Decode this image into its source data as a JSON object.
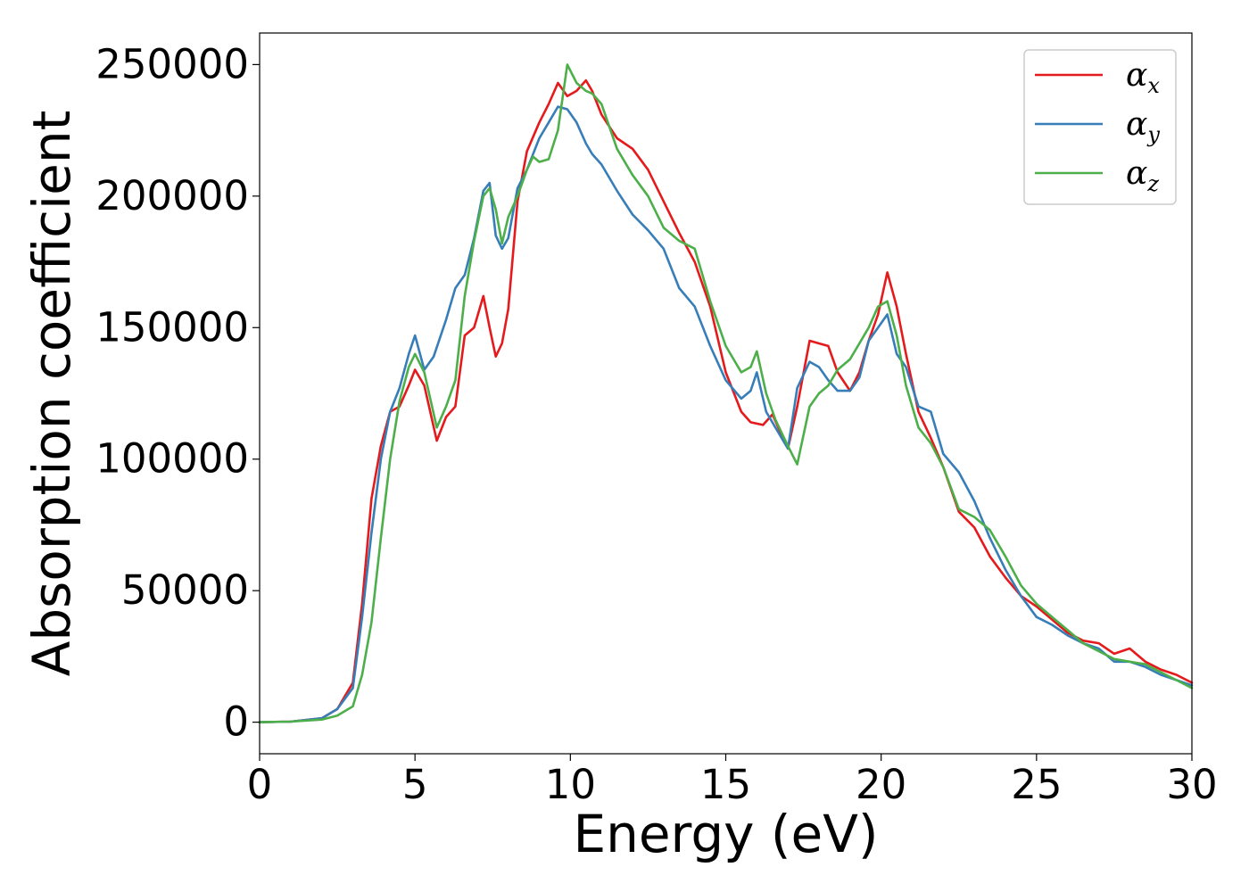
{
  "chart_data": {
    "type": "line",
    "title": "",
    "xlabel": "Energy (eV)",
    "ylabel": "Absorption coefficient",
    "xlim": [
      0,
      30
    ],
    "ylim": [
      -12000,
      262000
    ],
    "xticks": [
      0,
      5,
      10,
      15,
      20,
      25,
      30
    ],
    "yticks": [
      0,
      50000,
      100000,
      150000,
      200000,
      250000
    ],
    "grid": false,
    "legend_position": "top-right",
    "series": [
      {
        "name": "α_x",
        "symbol": "α",
        "subscript": "x",
        "color": "#e41a1c",
        "x": [
          0,
          1,
          2,
          2.5,
          3,
          3.3,
          3.6,
          3.9,
          4.2,
          4.5,
          4.8,
          5.0,
          5.3,
          5.7,
          6.0,
          6.3,
          6.6,
          6.9,
          7.2,
          7.4,
          7.6,
          7.8,
          8.0,
          8.3,
          8.6,
          9.0,
          9.3,
          9.6,
          9.9,
          10.2,
          10.5,
          10.7,
          11.0,
          11.5,
          12.0,
          12.5,
          13.0,
          13.5,
          14.0,
          14.5,
          15.0,
          15.5,
          15.8,
          16.2,
          16.5,
          17.0,
          17.3,
          17.7,
          18.0,
          18.3,
          18.6,
          19.0,
          19.3,
          19.6,
          19.9,
          20.2,
          20.5,
          20.8,
          21.2,
          21.6,
          22.0,
          22.5,
          23.0,
          23.5,
          24.0,
          24.5,
          25.0,
          25.5,
          26.0,
          26.5,
          27.0,
          27.5,
          28.0,
          28.5,
          29.0,
          29.5,
          30.0
        ],
        "y": [
          0,
          200,
          1500,
          5000,
          15000,
          45000,
          85000,
          105000,
          118000,
          120000,
          128000,
          134000,
          128000,
          107000,
          116000,
          120000,
          147000,
          150000,
          162000,
          150000,
          139000,
          144000,
          157000,
          198000,
          217000,
          228000,
          235000,
          243000,
          238000,
          240000,
          244000,
          240000,
          231000,
          222000,
          218000,
          210000,
          198000,
          186000,
          175000,
          158000,
          133000,
          118000,
          114000,
          113000,
          117000,
          104000,
          120000,
          145000,
          144000,
          143000,
          133000,
          126000,
          133000,
          145000,
          155000,
          171000,
          158000,
          140000,
          118000,
          108000,
          97000,
          80000,
          74000,
          63000,
          55000,
          48000,
          44000,
          39000,
          34000,
          31000,
          30000,
          26000,
          28000,
          23000,
          20000,
          18000,
          15000
        ]
      },
      {
        "name": "α_y",
        "symbol": "α",
        "subscript": "y",
        "color": "#377eb8",
        "x": [
          0,
          1,
          2,
          2.5,
          3,
          3.3,
          3.6,
          3.9,
          4.2,
          4.5,
          4.8,
          5.0,
          5.3,
          5.6,
          6.0,
          6.3,
          6.6,
          6.9,
          7.2,
          7.4,
          7.6,
          7.8,
          8.0,
          8.3,
          8.6,
          9.0,
          9.3,
          9.6,
          9.9,
          10.2,
          10.5,
          10.7,
          11.0,
          11.5,
          12.0,
          12.5,
          13.0,
          13.5,
          14.0,
          14.5,
          15.0,
          15.5,
          15.8,
          16.0,
          16.3,
          16.6,
          17.0,
          17.3,
          17.7,
          18.0,
          18.3,
          18.6,
          19.0,
          19.3,
          19.6,
          19.9,
          20.2,
          20.5,
          20.8,
          21.2,
          21.6,
          22.0,
          22.5,
          23.0,
          23.5,
          24.0,
          24.5,
          25.0,
          25.5,
          26.0,
          26.5,
          27.0,
          27.5,
          28.0,
          28.5,
          29.0,
          29.5,
          30.0
        ],
        "y": [
          0,
          200,
          1500,
          5000,
          13000,
          40000,
          72000,
          100000,
          118000,
          127000,
          140000,
          147000,
          134000,
          139000,
          153000,
          165000,
          170000,
          184000,
          202000,
          205000,
          185000,
          180000,
          184000,
          203000,
          210000,
          222000,
          228000,
          234000,
          233000,
          228000,
          220000,
          216000,
          212000,
          202000,
          193000,
          187000,
          180000,
          165000,
          158000,
          143000,
          130000,
          123000,
          126000,
          133000,
          118000,
          112000,
          104000,
          127000,
          137000,
          135000,
          130000,
          126000,
          126000,
          131000,
          145000,
          150000,
          155000,
          140000,
          135000,
          120000,
          118000,
          102000,
          95000,
          84000,
          70000,
          58000,
          48000,
          40000,
          37000,
          33000,
          30000,
          28000,
          23000,
          23000,
          21000,
          18000,
          16000,
          14000
        ]
      },
      {
        "name": "α_z",
        "symbol": "α",
        "subscript": "z",
        "color": "#4daf4a",
        "x": [
          0,
          1,
          2,
          2.5,
          3,
          3.3,
          3.6,
          3.9,
          4.2,
          4.5,
          4.8,
          5.0,
          5.3,
          5.7,
          6.0,
          6.3,
          6.6,
          6.9,
          7.2,
          7.4,
          7.6,
          7.8,
          8.0,
          8.3,
          8.6,
          8.8,
          9.0,
          9.3,
          9.6,
          9.9,
          10.2,
          10.5,
          10.7,
          11.0,
          11.5,
          12.0,
          12.5,
          13.0,
          13.5,
          14.0,
          14.5,
          15.0,
          15.5,
          15.8,
          16.0,
          16.3,
          16.6,
          17.0,
          17.3,
          17.7,
          18.0,
          18.3,
          18.6,
          19.0,
          19.3,
          19.6,
          19.9,
          20.2,
          20.5,
          20.8,
          21.2,
          21.6,
          22.0,
          22.5,
          23.0,
          23.5,
          24.0,
          24.5,
          25.0,
          25.5,
          26.0,
          26.5,
          27.0,
          27.5,
          28.0,
          28.5,
          29.0,
          29.5,
          30.0
        ],
        "y": [
          0,
          200,
          1000,
          2500,
          6000,
          18000,
          38000,
          70000,
          100000,
          122000,
          135000,
          140000,
          133000,
          112000,
          120000,
          130000,
          162000,
          183000,
          200000,
          203000,
          195000,
          182000,
          192000,
          200000,
          210000,
          215000,
          213000,
          214000,
          225000,
          250000,
          243000,
          240000,
          239000,
          235000,
          218000,
          208000,
          200000,
          188000,
          183000,
          180000,
          160000,
          143000,
          133000,
          135000,
          141000,
          125000,
          115000,
          105000,
          98000,
          120000,
          125000,
          128000,
          134000,
          138000,
          144000,
          150000,
          158000,
          160000,
          147000,
          128000,
          112000,
          106000,
          97000,
          81000,
          78000,
          73000,
          63000,
          52000,
          45000,
          40000,
          35000,
          30000,
          27000,
          24000,
          23000,
          22000,
          19000,
          16000,
          13000
        ]
      }
    ]
  }
}
